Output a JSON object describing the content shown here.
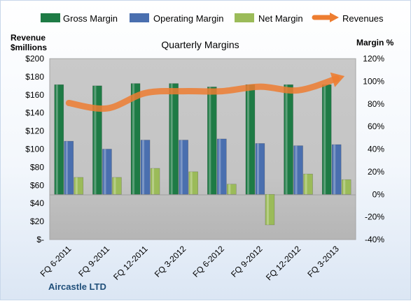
{
  "chart_data": {
    "type": "bar",
    "title": "Quarterly Margins",
    "company": "Aircastle LTD",
    "left_axis_label": [
      "Revenue",
      "$millions"
    ],
    "right_axis_label": "Margin %",
    "categories": [
      "FQ 6-2011",
      "FQ 9-2011",
      "FQ 12-2011",
      "FQ 3-2012",
      "FQ 6-2012",
      "FQ 9-2012",
      "FQ 12-2012",
      "FQ 3-2013"
    ],
    "series": [
      {
        "name": "Gross Margin",
        "axis": "right",
        "kind": "bar",
        "color": "#1e7b45",
        "values": [
          97,
          96,
          98,
          98,
          95,
          97,
          97,
          97
        ]
      },
      {
        "name": "Operating Margin",
        "axis": "right",
        "kind": "bar",
        "color": "#4a6faf",
        "values": [
          47,
          40,
          48,
          48,
          49,
          45,
          43,
          44
        ]
      },
      {
        "name": "Net Margin",
        "axis": "right",
        "kind": "bar",
        "color": "#9bbb59",
        "values": [
          15,
          15,
          23,
          20,
          9,
          -27,
          18,
          13
        ]
      },
      {
        "name": "Revenues",
        "axis": "left",
        "kind": "line",
        "color": "#ed7d31",
        "values": [
          151,
          145,
          162,
          164,
          164,
          169,
          165,
          178
        ]
      }
    ],
    "left_ylim": [
      0,
      200
    ],
    "left_ticks": [
      "$200",
      "$180",
      "$160",
      "$140",
      "$120",
      "$100",
      "$80",
      "$60",
      "$40",
      "$20",
      "$-"
    ],
    "right_ylim": [
      -40,
      120
    ],
    "right_ticks": [
      "120%",
      "100%",
      "80%",
      "60%",
      "40%",
      "20%",
      "0%",
      "-20%",
      "-40%"
    ],
    "legend_position": "top",
    "grid": false
  }
}
